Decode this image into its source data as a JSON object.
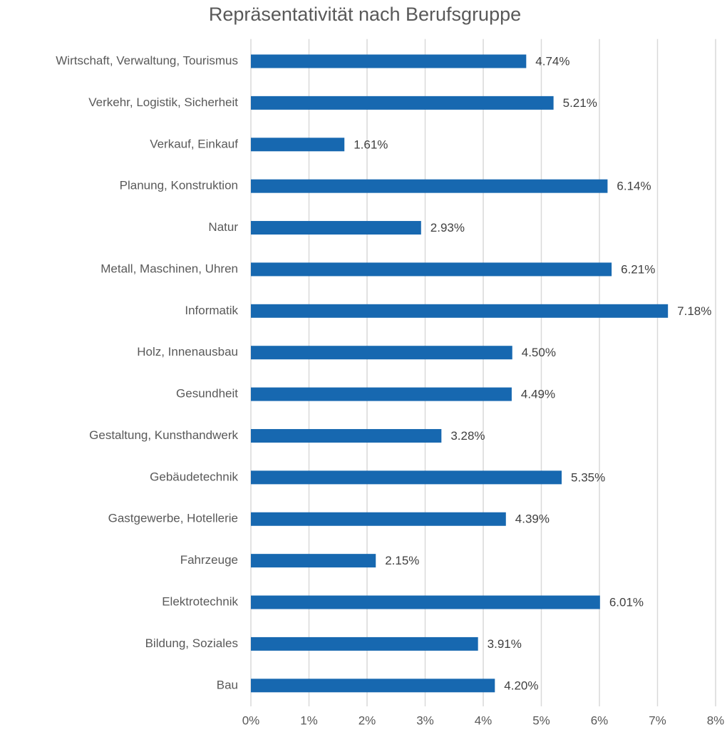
{
  "chart_data": {
    "type": "bar",
    "orientation": "horizontal",
    "title": "Repräsentativität nach Berufsgruppe",
    "categories": [
      "Wirtschaft, Verwaltung, Tourismus",
      "Verkehr, Logistik, Sicherheit",
      "Verkauf, Einkauf",
      "Planung, Konstruktion",
      "Natur",
      "Metall, Maschinen, Uhren",
      "Informatik",
      "Holz, Innenausbau",
      "Gesundheit",
      "Gestaltung, Kunsthandwerk",
      "Gebäudetechnik",
      "Gastgewerbe, Hotellerie",
      "Fahrzeuge",
      "Elektrotechnik",
      "Bildung, Soziales",
      "Bau"
    ],
    "values": [
      4.74,
      5.21,
      1.61,
      6.14,
      2.93,
      6.21,
      7.18,
      4.5,
      4.49,
      3.28,
      5.35,
      4.39,
      2.15,
      6.01,
      3.91,
      4.2
    ],
    "value_labels": [
      "4.74%",
      "5.21%",
      "1.61%",
      "6.14%",
      "2.93%",
      "6.21%",
      "7.18%",
      "4.50%",
      "4.49%",
      "3.28%",
      "5.35%",
      "4.39%",
      "2.15%",
      "6.01%",
      "3.91%",
      "4.20%"
    ],
    "color": "#1768b0",
    "xlim": [
      0,
      8
    ],
    "xticks": [
      {
        "value": 0,
        "label": "0%"
      },
      {
        "value": 1,
        "label": "1%"
      },
      {
        "value": 2,
        "label": "2%"
      },
      {
        "value": 3,
        "label": "3%"
      },
      {
        "value": 4,
        "label": "4%"
      },
      {
        "value": 5,
        "label": "5%"
      },
      {
        "value": 6,
        "label": "6%"
      },
      {
        "value": 7,
        "label": "7%"
      },
      {
        "value": 8,
        "label": "8%"
      }
    ],
    "grid": true
  }
}
